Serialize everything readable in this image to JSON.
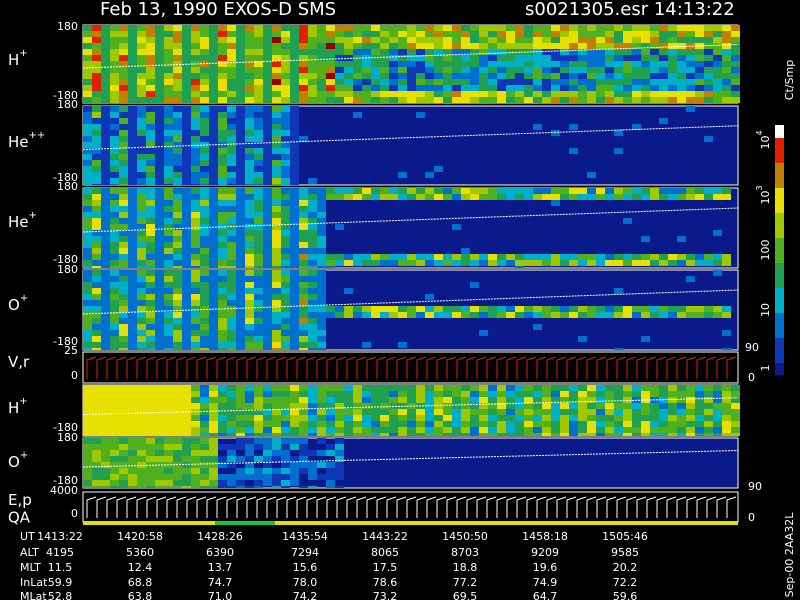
{
  "header": {
    "left": "Feb 13, 1990   EXOS-D SMS",
    "right": "s0021305.esr  14:13:22"
  },
  "panels": [
    {
      "label": {
        "base": "H",
        "sup": "+"
      },
      "top": "180",
      "bottom": "-180"
    },
    {
      "label": {
        "base": "He",
        "sup": "++"
      },
      "top": "180",
      "bottom": "-180"
    },
    {
      "label": {
        "base": "He",
        "sup": "+"
      },
      "top": "180",
      "bottom": "-180"
    },
    {
      "label": {
        "base": "O",
        "sup": "+"
      },
      "top": "180",
      "bottom": "-180"
    },
    {
      "label": {
        "base": "V,r",
        "sup": ""
      },
      "top": "25",
      "bottom": "0",
      "right_top": "90",
      "right_bottom": "0"
    },
    {
      "label": {
        "base": "H",
        "sup": "+"
      },
      "bottom": "-180"
    },
    {
      "label": {
        "base": "O",
        "sup": "+"
      },
      "top": "180",
      "bottom": "-180",
      "right_bottom": "90"
    },
    {
      "label": {
        "base": "E,p",
        "sup": ""
      },
      "label2": "QA",
      "top": "4000",
      "bottom": "0",
      "right_bottom": "0"
    }
  ],
  "colorbar": {
    "unit": "Ct/Smp",
    "labels": [
      {
        "base": "10",
        "sup": "4"
      },
      {
        "base": "10",
        "sup": "3"
      },
      {
        "base": "100",
        "sup": ""
      },
      {
        "base": "10",
        "sup": ""
      },
      {
        "base": "1",
        "sup": ""
      }
    ]
  },
  "footer_id": "Sep-00  2AA32L",
  "table": {
    "rows": [
      {
        "name": "UT",
        "cells": [
          "1413:22",
          "1420:58",
          "1428:26",
          "1435:54",
          "1443:22",
          "1450:50",
          "1458:18",
          "1505:46"
        ]
      },
      {
        "name": "ALT",
        "cells": [
          "4195",
          "5360",
          "6390",
          "7294",
          "8065",
          "8703",
          "9209",
          "9585"
        ]
      },
      {
        "name": "MLT",
        "cells": [
          "11.5",
          "12.4",
          "13.7",
          "15.6",
          "17.5",
          "18.8",
          "19.6",
          "20.2"
        ]
      },
      {
        "name": "InLat",
        "cells": [
          "59.9",
          "68.8",
          "74.7",
          "78.0",
          "78.6",
          "77.2",
          "74.9",
          "72.2"
        ]
      },
      {
        "name": "MLat",
        "cells": [
          "52.8",
          "63.8",
          "71.0",
          "74.2",
          "73.2",
          "69.5",
          "64.7",
          "59.6"
        ]
      }
    ]
  }
}
